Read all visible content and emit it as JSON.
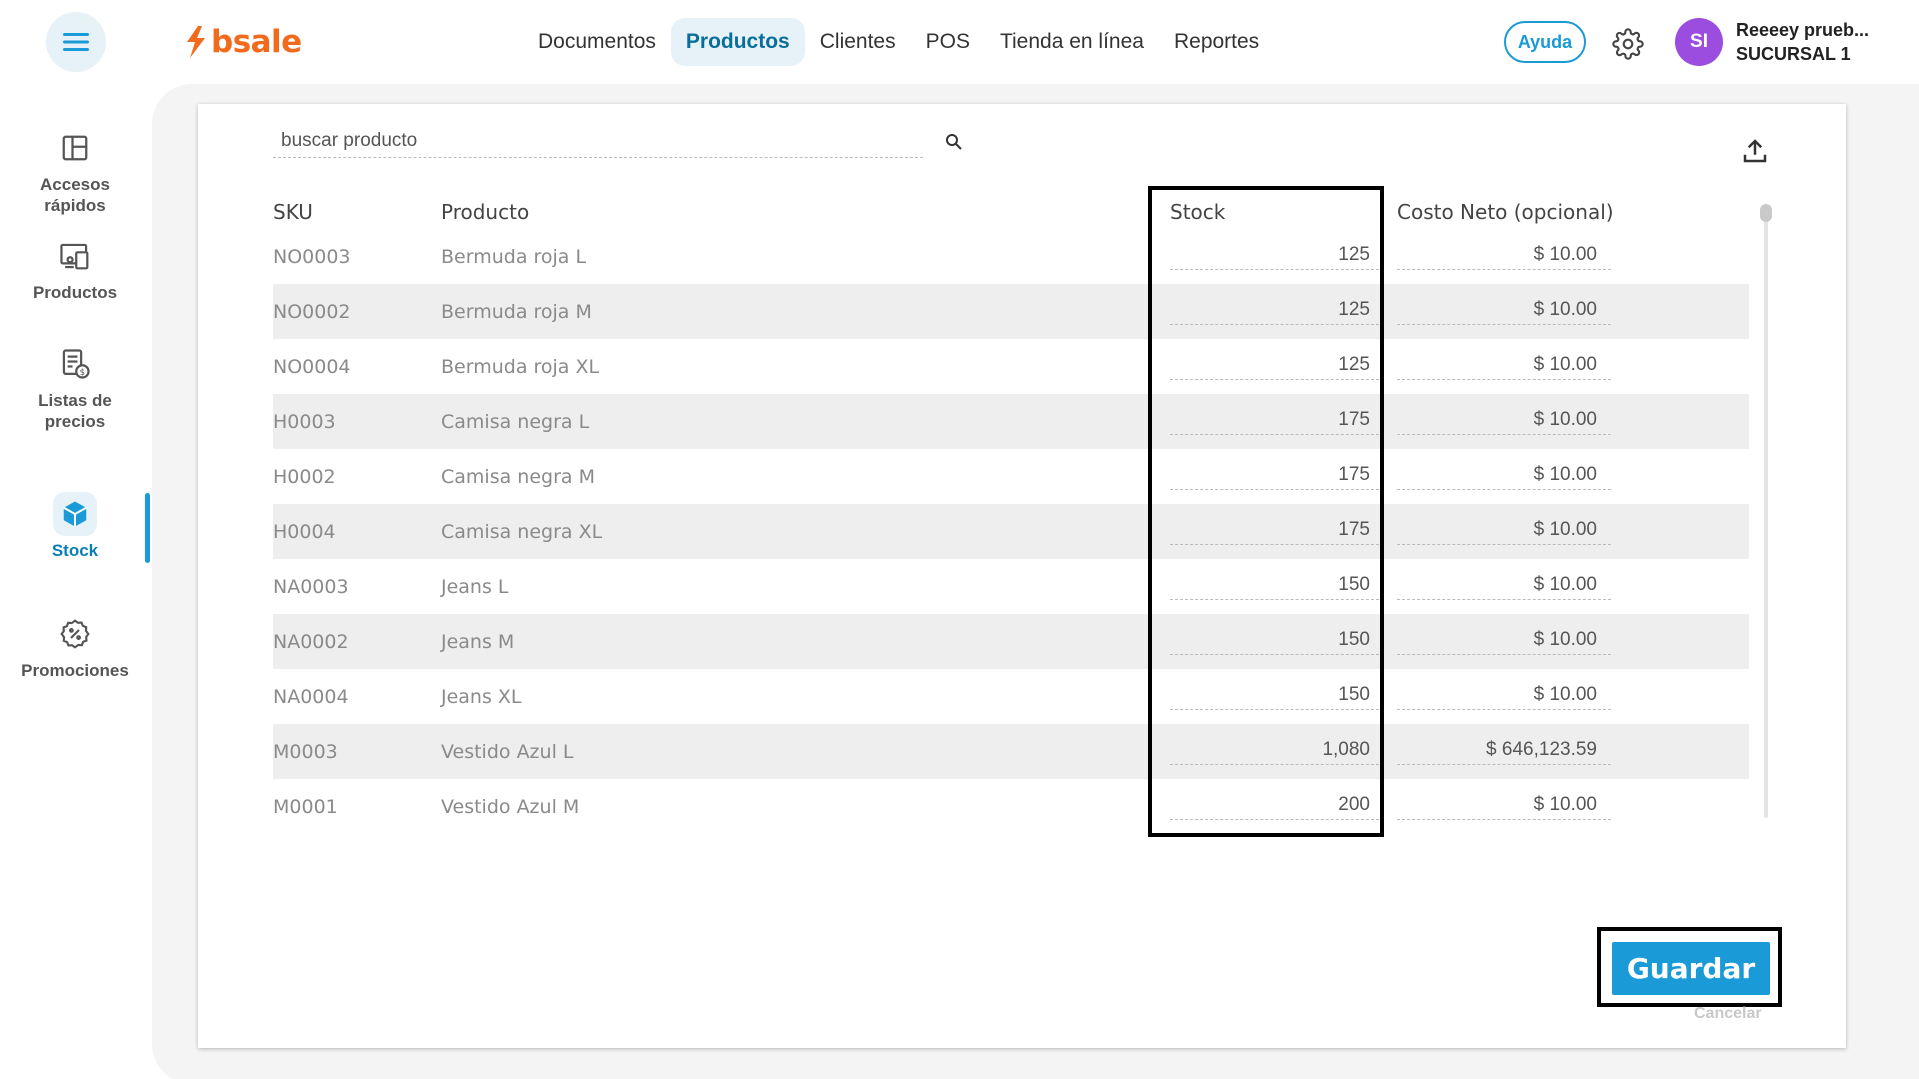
{
  "header": {
    "logo_text": "bsale",
    "nav": [
      {
        "label": "Documentos",
        "active": false
      },
      {
        "label": "Productos",
        "active": true
      },
      {
        "label": "Clientes",
        "active": false
      },
      {
        "label": "POS",
        "active": false
      },
      {
        "label": "Tienda en línea",
        "active": false
      },
      {
        "label": "Reportes",
        "active": false
      }
    ],
    "help_label": "Ayuda",
    "avatar_initials": "SI",
    "user_name": "Reeeey prueb...",
    "branch": "SUCURSAL 1",
    "accent_color": "#1a9ad6",
    "brand_color": "#f26b1d",
    "avatar_color": "#9b4de0"
  },
  "sidebar": {
    "items": [
      {
        "label": "Accesos rápidos",
        "icon": "layout-icon",
        "active": false
      },
      {
        "label": "Productos",
        "icon": "products-icon",
        "active": false
      },
      {
        "label": "Listas de precios",
        "icon": "price-list-icon",
        "active": false
      },
      {
        "label": "Stock",
        "icon": "box-icon",
        "active": true
      },
      {
        "label": "Promociones",
        "icon": "promo-badge-icon",
        "active": false
      }
    ]
  },
  "search": {
    "placeholder": "buscar producto",
    "value": ""
  },
  "table": {
    "columns": [
      "SKU",
      "Producto",
      "Stock",
      "Costo Neto (opcional)"
    ],
    "rows": [
      {
        "sku": "NO0003",
        "product": "Bermuda roja L",
        "stock": "125",
        "cost": "$ 10.00"
      },
      {
        "sku": "NO0002",
        "product": "Bermuda roja M",
        "stock": "125",
        "cost": "$ 10.00"
      },
      {
        "sku": "NO0004",
        "product": "Bermuda roja XL",
        "stock": "125",
        "cost": "$ 10.00"
      },
      {
        "sku": "H0003",
        "product": "Camisa negra L",
        "stock": "175",
        "cost": "$ 10.00"
      },
      {
        "sku": "H0002",
        "product": "Camisa negra M",
        "stock": "175",
        "cost": "$ 10.00"
      },
      {
        "sku": "H0004",
        "product": "Camisa negra XL",
        "stock": "175",
        "cost": "$ 10.00"
      },
      {
        "sku": "NA0003",
        "product": "Jeans L",
        "stock": "150",
        "cost": "$ 10.00"
      },
      {
        "sku": "NA0002",
        "product": "Jeans M",
        "stock": "150",
        "cost": "$ 10.00"
      },
      {
        "sku": "NA0004",
        "product": "Jeans XL",
        "stock": "150",
        "cost": "$ 10.00"
      },
      {
        "sku": "M0003",
        "product": "Vestido Azul L",
        "stock": "1,080",
        "cost": "$ 646,123.59"
      },
      {
        "sku": "M0001",
        "product": "Vestido Azul M",
        "stock": "200",
        "cost": "$ 10.00"
      }
    ]
  },
  "actions": {
    "save_label": "Guardar",
    "cancel_label": "Cancelar"
  }
}
